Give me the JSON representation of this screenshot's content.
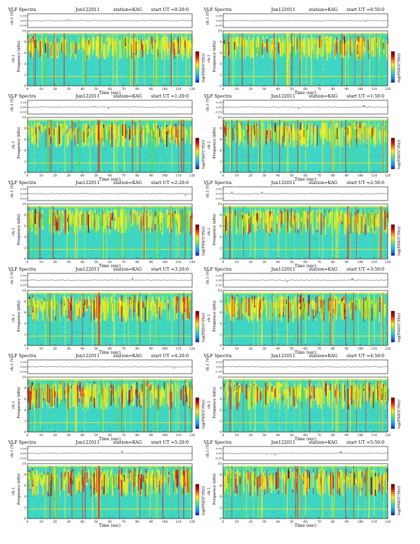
{
  "colors": {
    "spec_bg": "#3fd6c3",
    "spec_band": "#2ec7a0",
    "yellow": "#f2ee22",
    "red": "#e0231d",
    "dark_red": "#8a0f0f",
    "blue_dot": "#1a3fd0",
    "green": "#5ad84a",
    "frame": "#000000"
  },
  "colorbar_stops": [
    "#5a0000",
    "#d40000",
    "#ff7a00",
    "#f6ee24",
    "#7fe25a",
    "#22d3c8",
    "#1b8dff",
    "#0b1ea8"
  ],
  "labels": {
    "ch_label": "ch.1 (V)",
    "freq_label": "Frequency (kHz)",
    "ch_left": "ch.1",
    "cbar_label": "log(PSD(V²/Hz))",
    "xlabel": "Time (sec)",
    "cbar_top_tick": "-",
    "cbar_bottom_tick": "-"
  },
  "chart_data": [
    {
      "type": "heatmap",
      "title": "VLF Spectra",
      "date": "Jun122011",
      "station": "station=KAG",
      "start": "start UT =0:20:0",
      "x_ticks": [
        0,
        10,
        20,
        30,
        40,
        50,
        60,
        70,
        80,
        90,
        100,
        110,
        120
      ],
      "y_ticks": [
        0,
        2,
        4,
        6,
        8,
        10
      ],
      "ch_ticks": [
        "0.30",
        "0.00",
        "-0.30"
      ],
      "xlim": [
        0,
        120
      ],
      "ylim": [
        0,
        10
      ]
    },
    {
      "type": "heatmap",
      "title": "VLF Spectra",
      "date": "Jun122011",
      "station": "station=KAG",
      "start": "start UT =0:50:0",
      "x_ticks": [
        0,
        10,
        20,
        30,
        40,
        50,
        60,
        70,
        80,
        90,
        100,
        110,
        120
      ],
      "y_ticks": [
        0,
        2,
        4,
        6,
        8,
        10
      ],
      "ch_ticks": [
        "0.30",
        "0.00",
        "-0.30"
      ],
      "xlim": [
        0,
        120
      ],
      "ylim": [
        0,
        10
      ]
    },
    {
      "type": "heatmap",
      "title": "VLF Spectra",
      "date": "Jun122011",
      "station": "station=KAG",
      "start": "start UT =1:20:0",
      "x_ticks": [
        0,
        10,
        20,
        30,
        40,
        50,
        60,
        70,
        80,
        90,
        100,
        110,
        120
      ],
      "y_ticks": [
        0,
        2,
        4,
        6,
        8,
        10
      ],
      "ch_ticks": [
        "0.30",
        "0.00",
        "-0.30"
      ],
      "xlim": [
        0,
        120
      ],
      "ylim": [
        0,
        10
      ]
    },
    {
      "type": "heatmap",
      "title": "VLF Spectra",
      "date": "Jun122011",
      "station": "station=KAG",
      "start": "start UT =1:50:0",
      "x_ticks": [
        0,
        10,
        20,
        30,
        40,
        50,
        60,
        70,
        80,
        90,
        100,
        110,
        120
      ],
      "y_ticks": [
        0,
        2,
        4,
        6,
        8,
        10
      ],
      "ch_ticks": [
        "0.30",
        "0.00",
        "-0.30"
      ],
      "xlim": [
        0,
        120
      ],
      "ylim": [
        0,
        10
      ]
    },
    {
      "type": "heatmap",
      "title": "VLF Spectra",
      "date": "Jun122011",
      "station": "station=KAG",
      "start": "start UT =2:20:0",
      "x_ticks": [
        0,
        10,
        20,
        30,
        40,
        50,
        60,
        70,
        80,
        90,
        100,
        110,
        120
      ],
      "y_ticks": [
        0,
        2,
        4,
        6,
        8,
        10
      ],
      "ch_ticks": [
        "0.30",
        "0.00",
        "-0.30"
      ],
      "xlim": [
        0,
        120
      ],
      "ylim": [
        0,
        10
      ]
    },
    {
      "type": "heatmap",
      "title": "VLF Spectra",
      "date": "Jun122011",
      "station": "station=KAG",
      "start": "start UT =2:50:0",
      "x_ticks": [
        0,
        10,
        20,
        30,
        40,
        50,
        60,
        70,
        80,
        90,
        100,
        110,
        120
      ],
      "y_ticks": [
        0,
        2,
        4,
        6,
        8,
        10
      ],
      "ch_ticks": [
        "0.30",
        "0.00",
        "-0.30"
      ],
      "xlim": [
        0,
        120
      ],
      "ylim": [
        0,
        10
      ]
    },
    {
      "type": "heatmap",
      "title": "VLF Spectra",
      "date": "Jun122011",
      "station": "station=KAG",
      "start": "start UT =3:20:0",
      "x_ticks": [
        0,
        10,
        20,
        30,
        40,
        50,
        60,
        70,
        80,
        90,
        100,
        110,
        120
      ],
      "y_ticks": [
        0,
        2,
        4,
        6,
        8,
        10
      ],
      "ch_ticks": [
        "0.30",
        "0.00",
        "-0.30"
      ],
      "xlim": [
        0,
        120
      ],
      "ylim": [
        0,
        10
      ]
    },
    {
      "type": "heatmap",
      "title": "VLF Spectra",
      "date": "Jun122011",
      "station": "station=KAG",
      "start": "start UT =3:50:0",
      "x_ticks": [
        0,
        10,
        20,
        30,
        40,
        50,
        60,
        70,
        80,
        90,
        100,
        110,
        120
      ],
      "y_ticks": [
        0,
        2,
        4,
        6,
        8,
        10
      ],
      "ch_ticks": [
        "0.30",
        "0.00",
        "-0.30"
      ],
      "xlim": [
        0,
        120
      ],
      "ylim": [
        0,
        10
      ]
    },
    {
      "type": "heatmap",
      "title": "VLF Spectra",
      "date": "Jun122011",
      "station": "station=KAG",
      "start": "start UT =4:20:0",
      "x_ticks": [
        0,
        10,
        20,
        30,
        40,
        50,
        60,
        70,
        80,
        90,
        100,
        110,
        120
      ],
      "y_ticks": [
        0,
        2,
        4,
        6,
        8,
        10
      ],
      "ch_ticks": [
        "0.30",
        "0.00",
        "-0.30"
      ],
      "xlim": [
        0,
        120
      ],
      "ylim": [
        0,
        10
      ]
    },
    {
      "type": "heatmap",
      "title": "VLF Spectra",
      "date": "Jun122011",
      "station": "station=KAG",
      "start": "start UT =4:50:0",
      "x_ticks": [
        0,
        10,
        20,
        30,
        40,
        50,
        60,
        70,
        80,
        90,
        100,
        110,
        120
      ],
      "y_ticks": [
        0,
        2,
        4,
        6,
        8,
        10
      ],
      "ch_ticks": [
        "0.30",
        "0.00",
        "-0.30"
      ],
      "xlim": [
        0,
        120
      ],
      "ylim": [
        0,
        10
      ]
    },
    {
      "type": "heatmap",
      "title": "VLF Spectra",
      "date": "Jun122011",
      "station": "station=KAG",
      "start": "start UT =5:20:0",
      "x_ticks": [
        0,
        10,
        20,
        30,
        40,
        50,
        60,
        70,
        80,
        90,
        100,
        110,
        120
      ],
      "y_ticks": [
        0,
        2,
        4,
        6,
        8,
        10
      ],
      "ch_ticks": [
        "0.30",
        "0.00",
        "-0.30"
      ],
      "xlim": [
        0,
        120
      ],
      "ylim": [
        0,
        10
      ]
    },
    {
      "type": "heatmap",
      "title": "VLF Spectra",
      "date": "Jun122011",
      "station": "station=KAG",
      "start": "start UT =5:50:0",
      "x_ticks": [
        0,
        10,
        20,
        30,
        40,
        50,
        60,
        70,
        80,
        90,
        100,
        110,
        120
      ],
      "y_ticks": [
        0,
        2,
        4,
        6,
        8,
        10
      ],
      "ch_ticks": [
        "0.30",
        "0.00",
        "-0.30"
      ],
      "xlim": [
        0,
        120
      ],
      "ylim": [
        0,
        10
      ]
    }
  ]
}
